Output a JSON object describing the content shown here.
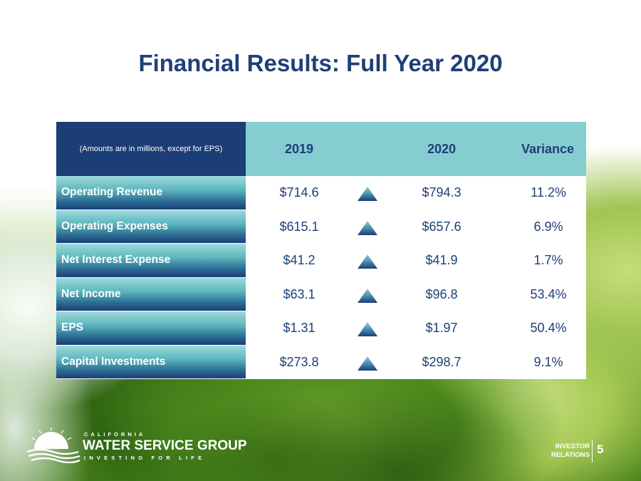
{
  "slide": {
    "title": "Financial Results: Full Year 2020",
    "page_number": "5"
  },
  "table": {
    "note": "(Amounts are in millions, except for EPS)",
    "columns": [
      "2019",
      "2020",
      "Variance"
    ],
    "rows": [
      {
        "label": "Operating Revenue",
        "v2019": "$714.6",
        "v2020": "$794.3",
        "variance": "11.2%",
        "trend": "up"
      },
      {
        "label": "Operating Expenses",
        "v2019": "$615.1",
        "v2020": "$657.6",
        "variance": "6.9%",
        "trend": "up"
      },
      {
        "label": "Net Interest Expense",
        "v2019": "$41.2",
        "v2020": "$41.9",
        "variance": "1.7%",
        "trend": "up"
      },
      {
        "label": "Net Income",
        "v2019": "$63.1",
        "v2020": "$96.8",
        "variance": "53.4%",
        "trend": "up"
      },
      {
        "label": "EPS",
        "v2019": "$1.31",
        "v2020": "$1.97",
        "variance": "50.4%",
        "trend": "up"
      },
      {
        "label": "Capital Investments",
        "v2019": "$273.8",
        "v2020": "$298.7",
        "variance": "9.1%",
        "trend": "up"
      }
    ]
  },
  "footer": {
    "logo_top": "CALIFORNIA",
    "logo_main": "WATER SERVICE GROUP",
    "logo_tagline": "INVESTING FOR LIFE",
    "ir_line1": "INVESTOR",
    "ir_line2": "RELATIONS"
  },
  "colors": {
    "title": "#1f3f78",
    "header_dark": "#1c3e76",
    "header_light": "#86cdd1"
  },
  "icons": {
    "trend": "up-triangle-icon"
  }
}
